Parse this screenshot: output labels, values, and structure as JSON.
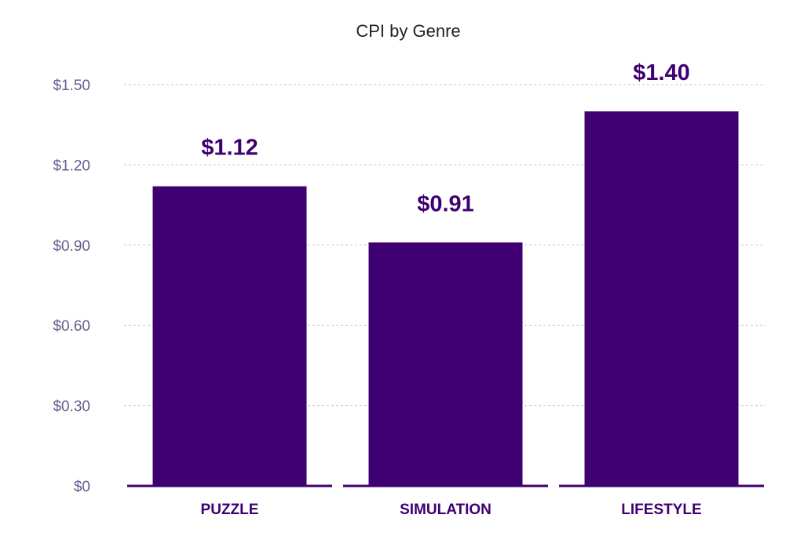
{
  "chart_data": {
    "type": "bar",
    "title": "CPI by Genre",
    "categories": [
      "PUZZLE",
      "SIMULATION",
      "LIFESTYLE"
    ],
    "values": [
      1.12,
      0.91,
      1.4
    ],
    "data_labels": [
      "$1.12",
      "$0.91",
      "$1.40"
    ],
    "y_ticks": [
      0,
      0.3,
      0.6,
      0.9,
      1.2,
      1.5
    ],
    "y_tick_labels": [
      "$0",
      "$0.30",
      "$0.60",
      "$0.90",
      "$1.20",
      "$1.50"
    ],
    "ylim": [
      0,
      1.5
    ],
    "xlabel": "",
    "ylabel": "",
    "grid": true,
    "legend": "none"
  },
  "colors": {
    "bar": "#3f0071",
    "data_label": "#3f0071",
    "category_label": "#3f0071",
    "tick_label": "#6b5a8e",
    "gridline": "#c8c8c8",
    "baseline": "#3f0071",
    "title": "#222222"
  }
}
